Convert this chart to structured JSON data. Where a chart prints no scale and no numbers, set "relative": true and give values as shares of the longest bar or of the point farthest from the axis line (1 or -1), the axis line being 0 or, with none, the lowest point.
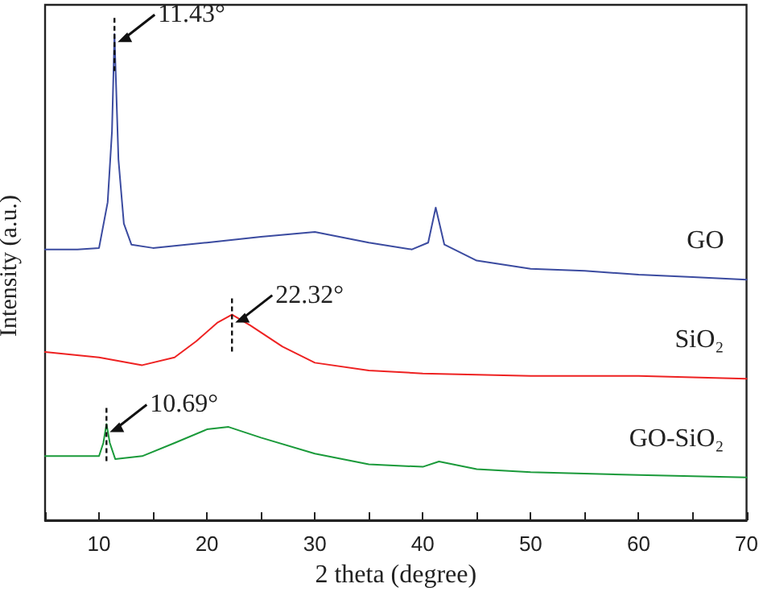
{
  "chart_data": {
    "type": "line",
    "relative": true,
    "xlabel": "2 theta (degree)",
    "ylabel": "Intensity (a.u.)",
    "xlim": [
      5,
      70
    ],
    "xticks": [
      {
        "value": 5,
        "label": null
      },
      10,
      {
        "value": 15,
        "label": null
      },
      20,
      {
        "value": 25,
        "label": null
      },
      30,
      {
        "value": 35,
        "label": null
      },
      40,
      {
        "value": 45,
        "label": null
      },
      50,
      {
        "value": 55,
        "label": null
      },
      60,
      {
        "value": 65,
        "label": null
      },
      70
    ],
    "legend": false,
    "grid": false,
    "marker": "none",
    "line_style": "solid",
    "annotations": [
      {
        "text": "11.43°",
        "x": 11.43,
        "y": 1.0
      },
      {
        "text": "22.32°",
        "x": 22.32,
        "y": 0.423
      },
      {
        "text": "10.69°",
        "x": 10.69,
        "y": 0.198
      }
    ],
    "series": [
      {
        "name": "GO",
        "color": "#3b4ba0",
        "x": [
          5,
          8,
          10,
          10.8,
          11.2,
          11.43,
          11.8,
          12.3,
          13,
          15,
          20,
          25,
          30,
          35,
          39,
          40.5,
          41.2,
          42,
          45,
          50,
          55,
          60,
          65,
          70
        ],
        "values": [
          0.557,
          0.557,
          0.56,
          0.654,
          0.8,
          1.0,
          0.742,
          0.61,
          0.567,
          0.56,
          0.571,
          0.583,
          0.593,
          0.571,
          0.557,
          0.571,
          0.643,
          0.567,
          0.534,
          0.517,
          0.513,
          0.505,
          0.5,
          0.495
        ]
      },
      {
        "name": "SiO₂",
        "color": "#ee2222",
        "x": [
          5,
          10,
          14,
          17,
          19,
          21,
          22.32,
          24,
          27,
          30,
          35,
          40,
          50,
          60,
          70
        ],
        "values": [
          0.346,
          0.335,
          0.319,
          0.335,
          0.368,
          0.407,
          0.423,
          0.401,
          0.357,
          0.324,
          0.308,
          0.302,
          0.297,
          0.297,
          0.291
        ]
      },
      {
        "name": "GO-SiO₂",
        "color": "#1a9a3a",
        "x": [
          5,
          10,
          10.4,
          10.69,
          11,
          11.5,
          14,
          17,
          20,
          22,
          25,
          30,
          35,
          40,
          41.5,
          45,
          50,
          60,
          70
        ],
        "values": [
          0.132,
          0.132,
          0.159,
          0.198,
          0.159,
          0.126,
          0.132,
          0.159,
          0.187,
          0.192,
          0.17,
          0.137,
          0.115,
          0.11,
          0.121,
          0.105,
          0.099,
          0.093,
          0.088
        ]
      }
    ]
  }
}
